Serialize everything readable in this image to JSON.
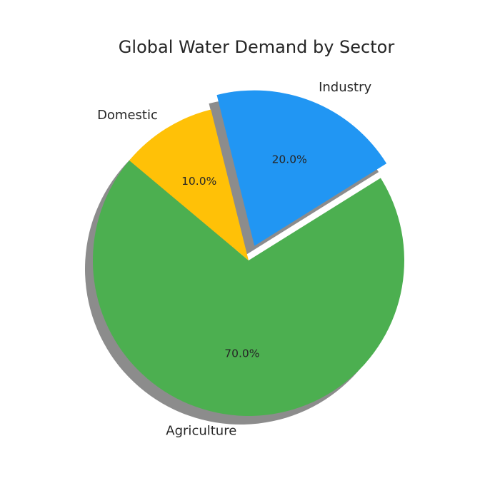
{
  "chart_data": {
    "type": "pie",
    "title": "Global Water Demand by Sector",
    "categories": [
      "Agriculture",
      "Industry",
      "Domestic"
    ],
    "values": [
      70,
      20,
      10
    ],
    "percent_labels": [
      "70.0%",
      "20.0%",
      "10.0%"
    ],
    "colors": [
      "#4caf50",
      "#2196f3",
      "#ffc107"
    ],
    "exploded": [
      false,
      true,
      false
    ],
    "shadow": true,
    "start_angle_deg": 140,
    "direction": "counterclockwise"
  }
}
